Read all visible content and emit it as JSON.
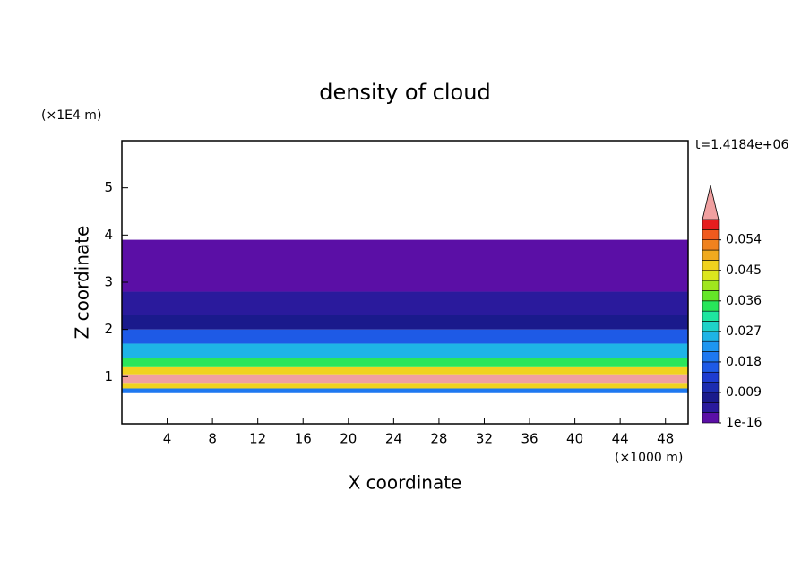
{
  "chart_data": {
    "type": "contour",
    "title": "density of cloud",
    "x_label": "X coordinate",
    "y_label": "Z coordinate",
    "x_unit": "(×1000 m)",
    "y_unit": "(×1E4 m)",
    "annotation": "t=1.4184e+06",
    "xlim": [
      0,
      50
    ],
    "ylim": [
      0,
      6
    ],
    "xticks": [
      4,
      8,
      12,
      16,
      20,
      24,
      28,
      32,
      36,
      40,
      44,
      48
    ],
    "yticks": [
      1,
      2,
      3,
      4,
      5
    ],
    "clim": [
      0,
      0.06
    ],
    "colors": [
      "#5b0fa6",
      "#2a1a9c",
      "#1a1a8c",
      "#1c2cb0",
      "#1e3cd0",
      "#1e5ae6",
      "#1e78f0",
      "#1e96f0",
      "#1eb4e6",
      "#1ed2c8",
      "#1ee6a0",
      "#28e65a",
      "#64e628",
      "#a0e61e",
      "#dce61e",
      "#f0d21e",
      "#f0aa1e",
      "#f0821e",
      "#f05a1e",
      "#e61e1e"
    ],
    "over_color": "#f0a0a0",
    "cticks": [
      {
        "value": 1e-16,
        "label": "1e-16"
      },
      0.009,
      0.018,
      0.027,
      0.036,
      0.045,
      0.054
    ],
    "profile": {
      "z_bins": [
        0.65,
        0.75,
        0.85,
        1.05,
        1.2,
        1.4,
        1.7,
        2.0,
        2.3,
        2.8,
        3.9
      ],
      "values": [
        0.02,
        0.045,
        0.062,
        0.045,
        0.033,
        0.024,
        0.015,
        0.008,
        0.004,
        0.001
      ]
    }
  }
}
